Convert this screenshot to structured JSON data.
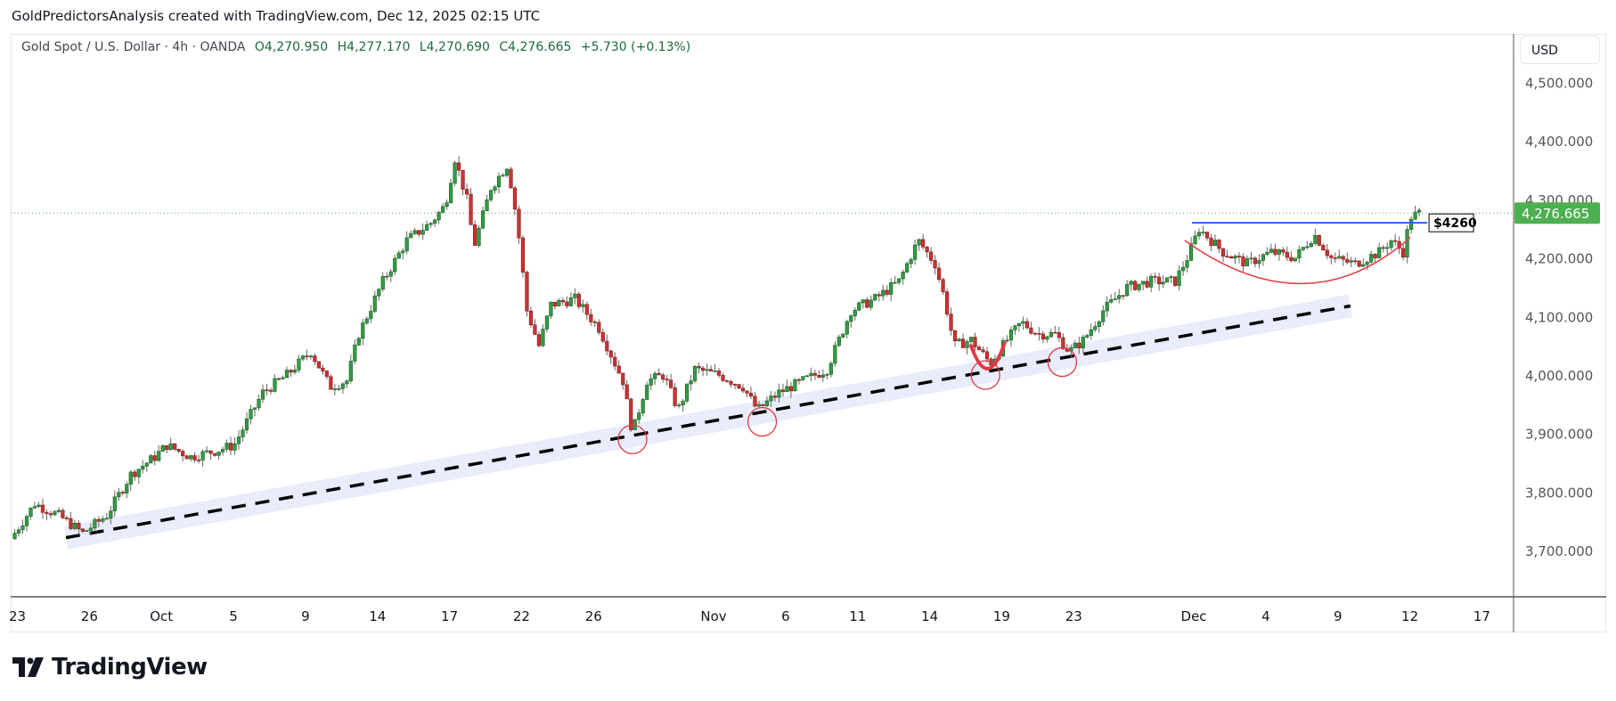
{
  "credit": "GoldPredictorsAnalysis created with TradingView.com, Dec 12, 2025 02:15 UTC",
  "legend": {
    "symbol": "Gold Spot / U.S. Dollar · 4h · OANDA",
    "open": "O4,270.950",
    "high": "H4,277.170",
    "low": "L4,270.690",
    "close": "C4,276.665",
    "change": "+5.730 (+0.13%)"
  },
  "currency": "USD",
  "brand": "TradingView",
  "colors": {
    "up": "#2e9e44",
    "down": "#d32f2f",
    "last_price": "#4caf50",
    "trendline_band": "#e8ecfb",
    "resistance": "#2962ff",
    "annotation_red": "#e53945"
  },
  "chart_data": {
    "type": "candlestick",
    "title": "Gold Spot / U.S. Dollar · 4h · OANDA",
    "x_unit": "trading days since Sep 23",
    "ylim": [
      3620,
      4560
    ],
    "y_ticks": [
      {
        "value": 4500,
        "label": "4,500.000"
      },
      {
        "value": 4400,
        "label": "4,400.000"
      },
      {
        "value": 4300,
        "label": "4,300.000"
      },
      {
        "value": 4200,
        "label": "4,200.000"
      },
      {
        "value": 4100,
        "label": "4,100.000"
      },
      {
        "value": 4000,
        "label": "4,000.000"
      },
      {
        "value": 3900,
        "label": "3,900.000"
      },
      {
        "value": 3800,
        "label": "3,800.000"
      },
      {
        "value": 3700,
        "label": "3,700.000"
      }
    ],
    "x_ticks": [
      {
        "t": 0,
        "label": "23"
      },
      {
        "t": 3,
        "label": "26"
      },
      {
        "t": 6,
        "label": "Oct"
      },
      {
        "t": 9,
        "label": "5"
      },
      {
        "t": 12,
        "label": "9"
      },
      {
        "t": 15,
        "label": "14"
      },
      {
        "t": 18,
        "label": "17"
      },
      {
        "t": 21,
        "label": "22"
      },
      {
        "t": 24,
        "label": "26"
      },
      {
        "t": 29,
        "label": "Nov"
      },
      {
        "t": 32,
        "label": "6"
      },
      {
        "t": 35,
        "label": "11"
      },
      {
        "t": 38,
        "label": "14"
      },
      {
        "t": 41,
        "label": "19"
      },
      {
        "t": 44,
        "label": "23"
      },
      {
        "t": 49,
        "label": "Dec"
      },
      {
        "t": 52,
        "label": "4"
      },
      {
        "t": 55,
        "label": "9"
      },
      {
        "t": 58,
        "label": "12"
      },
      {
        "t": 61,
        "label": "17"
      }
    ],
    "price_path": [
      [
        -0.5,
        3720
      ],
      [
        0.5,
        3780
      ],
      [
        1.5,
        3760
      ],
      [
        2.5,
        3730
      ],
      [
        3.5,
        3760
      ],
      [
        4.5,
        3830
      ],
      [
        5.5,
        3860
      ],
      [
        6,
        3880
      ],
      [
        7,
        3860
      ],
      [
        8,
        3870
      ],
      [
        8.8,
        3880
      ],
      [
        10,
        3970
      ],
      [
        11,
        4000
      ],
      [
        12,
        4040
      ],
      [
        12.8,
        3980
      ],
      [
        13.5,
        3990
      ],
      [
        14,
        4070
      ],
      [
        15,
        4160
      ],
      [
        16,
        4230
      ],
      [
        17,
        4260
      ],
      [
        17.6,
        4290
      ],
      [
        18,
        4370
      ],
      [
        18.5,
        4300
      ],
      [
        18.8,
        4220
      ],
      [
        19.5,
        4320
      ],
      [
        20.2,
        4360
      ],
      [
        20.6,
        4260
      ],
      [
        21,
        4110
      ],
      [
        21.5,
        4050
      ],
      [
        22,
        4120
      ],
      [
        23,
        4130
      ],
      [
        24,
        4080
      ],
      [
        25,
        3990
      ],
      [
        25.4,
        3900
      ],
      [
        26,
        3990
      ],
      [
        26.7,
        4000
      ],
      [
        27.3,
        3940
      ],
      [
        28,
        4010
      ],
      [
        29,
        4000
      ],
      [
        30,
        3980
      ],
      [
        30.6,
        3940
      ],
      [
        31.5,
        3970
      ],
      [
        32.5,
        3990
      ],
      [
        33.5,
        4010
      ],
      [
        34.5,
        4110
      ],
      [
        35.5,
        4130
      ],
      [
        36.5,
        4160
      ],
      [
        37.3,
        4230
      ],
      [
        38,
        4190
      ],
      [
        38.4,
        4130
      ],
      [
        38.8,
        4050
      ],
      [
        39.5,
        4060
      ],
      [
        40.3,
        4020
      ],
      [
        41,
        4060
      ],
      [
        41.6,
        4090
      ],
      [
        42.3,
        4070
      ],
      [
        43,
        4070
      ],
      [
        43.6,
        4040
      ],
      [
        44.2,
        4060
      ],
      [
        45,
        4110
      ],
      [
        46,
        4150
      ],
      [
        47,
        4160
      ],
      [
        48,
        4160
      ],
      [
        48.5,
        4200
      ],
      [
        49,
        4250
      ],
      [
        50,
        4210
      ],
      [
        51,
        4190
      ],
      [
        52,
        4210
      ],
      [
        53,
        4200
      ],
      [
        53.8,
        4240
      ],
      [
        54.5,
        4200
      ],
      [
        55.5,
        4190
      ],
      [
        56.5,
        4210
      ],
      [
        57,
        4230
      ],
      [
        57.5,
        4210
      ],
      [
        57.8,
        4270
      ],
      [
        58.2,
        4276.665
      ]
    ],
    "last_price": {
      "value": 4276.665,
      "label": "4,276.665"
    },
    "annotations": {
      "trendline": {
        "from": [
          1.8,
          3722
        ],
        "to": [
          55.3,
          4118
        ],
        "style": "dashed"
      },
      "touch_circles": [
        [
          25.4,
          3890
        ],
        [
          30.8,
          3920
        ],
        [
          40.1,
          4000
        ],
        [
          43.3,
          4022
        ]
      ],
      "u_arc": {
        "from": [
          39.5,
          4050
        ],
        "bottom": [
          40.2,
          4015
        ],
        "to": [
          40.9,
          4055
        ]
      },
      "resistance": {
        "from": 48.7,
        "to": 58.5,
        "price": 4260,
        "label": "$4260"
      },
      "rounding_bottom": {
        "from": [
          48.4,
          4230
        ],
        "bottom": [
          53.5,
          4156
        ],
        "to": [
          57.8,
          4235
        ]
      }
    }
  }
}
